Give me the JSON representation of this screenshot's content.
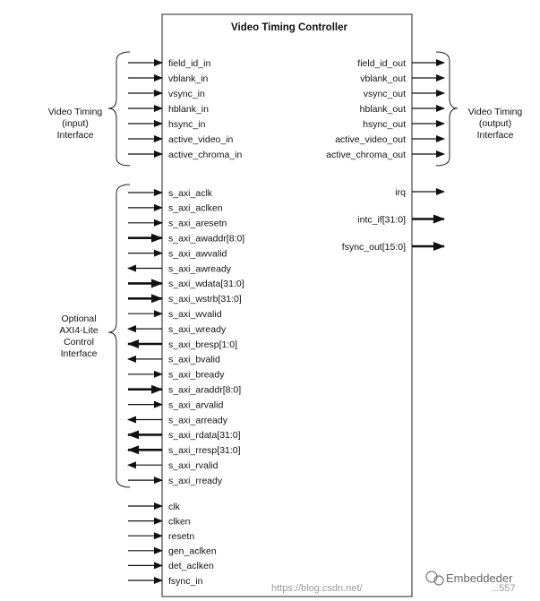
{
  "title": "Video Timing Controller",
  "groups": {
    "video_in": [
      "Video Timing",
      "(input)",
      "Interface"
    ],
    "video_out": [
      "Video Timing",
      "(output)",
      "Interface"
    ],
    "axi": [
      "Optional",
      "AXI4-Lite",
      "Control",
      "Interface"
    ]
  },
  "ports": {
    "video_in": [
      {
        "name": "field_id_in",
        "dir": "in",
        "bus": false
      },
      {
        "name": "vblank_in",
        "dir": "in",
        "bus": false
      },
      {
        "name": "vsync_in",
        "dir": "in",
        "bus": false
      },
      {
        "name": "hblank_in",
        "dir": "in",
        "bus": false
      },
      {
        "name": "hsync_in",
        "dir": "in",
        "bus": false
      },
      {
        "name": "active_video_in",
        "dir": "in",
        "bus": false
      },
      {
        "name": "active_chroma_in",
        "dir": "in",
        "bus": false
      }
    ],
    "video_out": [
      {
        "name": "field_id_out",
        "dir": "out",
        "bus": false
      },
      {
        "name": "vblank_out",
        "dir": "out",
        "bus": false
      },
      {
        "name": "vsync_out",
        "dir": "out",
        "bus": false
      },
      {
        "name": "hblank_out",
        "dir": "out",
        "bus": false
      },
      {
        "name": "hsync_out",
        "dir": "out",
        "bus": false
      },
      {
        "name": "active_video_out",
        "dir": "out",
        "bus": false
      },
      {
        "name": "active_chroma_out",
        "dir": "out",
        "bus": false
      }
    ],
    "axi": [
      {
        "name": "s_axi_aclk",
        "dir": "in",
        "bus": false
      },
      {
        "name": "s_axi_aclken",
        "dir": "in",
        "bus": false
      },
      {
        "name": "s_axi_aresetn",
        "dir": "in",
        "bus": false
      },
      {
        "name": "s_axi_awaddr[8:0]",
        "dir": "in",
        "bus": true
      },
      {
        "name": "s_axi_awvalid",
        "dir": "in",
        "bus": false
      },
      {
        "name": "s_axi_awready",
        "dir": "out",
        "bus": false
      },
      {
        "name": "s_axi_wdata[31:0]",
        "dir": "in",
        "bus": true
      },
      {
        "name": "s_axi_wstrb[31:0]",
        "dir": "in",
        "bus": true
      },
      {
        "name": "s_axi_wvalid",
        "dir": "in",
        "bus": false
      },
      {
        "name": "s_axi_wready",
        "dir": "out",
        "bus": false
      },
      {
        "name": "s_axi_bresp[1:0]",
        "dir": "out",
        "bus": true
      },
      {
        "name": "s_axi_bvalid",
        "dir": "out",
        "bus": false
      },
      {
        "name": "s_axi_bready",
        "dir": "in",
        "bus": false
      },
      {
        "name": "s_axi_araddr[8:0]",
        "dir": "in",
        "bus": true
      },
      {
        "name": "s_axi_arvalid",
        "dir": "in",
        "bus": false
      },
      {
        "name": "s_axi_arready",
        "dir": "out",
        "bus": false
      },
      {
        "name": "s_axi_rdata[31:0]",
        "dir": "out",
        "bus": true
      },
      {
        "name": "s_axi_rresp[31:0]",
        "dir": "out",
        "bus": true
      },
      {
        "name": "s_axi_rvalid",
        "dir": "out",
        "bus": false
      },
      {
        "name": "s_axi_rready",
        "dir": "in",
        "bus": false
      }
    ],
    "misc_out": [
      {
        "name": "irq",
        "dir": "out",
        "bus": false
      },
      {
        "name": "intc_if[31:0]",
        "dir": "out",
        "bus": true
      },
      {
        "name": "fsync_out[15:0]",
        "dir": "out",
        "bus": true
      }
    ],
    "clock": [
      {
        "name": "clk",
        "dir": "in",
        "bus": false
      },
      {
        "name": "clken",
        "dir": "in",
        "bus": false
      },
      {
        "name": "resetn",
        "dir": "in",
        "bus": false
      },
      {
        "name": "gen_aclken",
        "dir": "in",
        "bus": false
      },
      {
        "name": "det_aclken",
        "dir": "in",
        "bus": false
      },
      {
        "name": "fsync_in",
        "dir": "in",
        "bus": false
      }
    ]
  },
  "watermark": {
    "url": "https://blog.csdn.net/",
    "brand": "Embeddeder",
    "tail": "...557"
  }
}
